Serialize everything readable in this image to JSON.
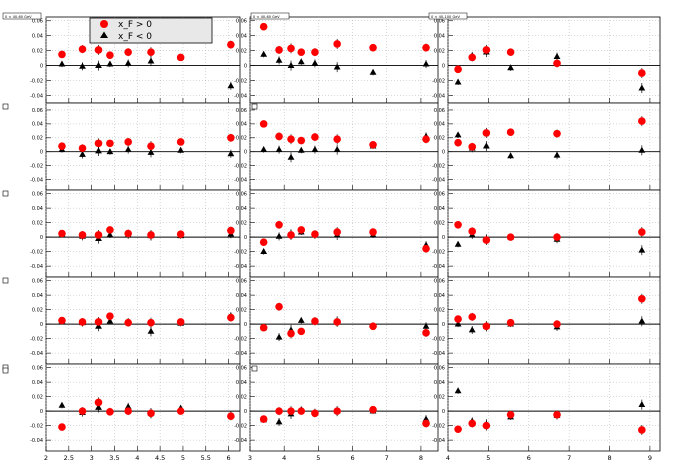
{
  "legend": {
    "entries": [
      {
        "label": "x_F > 0",
        "color": "#ff0000",
        "marker": "circle"
      },
      {
        "label": "x_F < 0",
        "color": "#000000",
        "marker": "triangle"
      }
    ]
  },
  "pad_titles": [
    "0 < 40-60 GeV",
    "0 < 40-60 GeV",
    "0 < 40-100 GeV"
  ],
  "chart_data": [
    {
      "type": "scatter",
      "grid": "3 columns x 5 rows of panels, each panel with dotted grid",
      "columns": [
        {
          "xlim": [
            2,
            6.25
          ],
          "xticks": [
            "2",
            "2.5",
            "3",
            "3.5",
            "4",
            "4.5",
            "5",
            "5.5",
            "6"
          ],
          "x_values": [
            2.35,
            2.8,
            3.15,
            3.4,
            3.8,
            4.3,
            4.95,
            6.05
          ],
          "rows": [
            {
              "ylim": [
                -0.05,
                0.065
              ],
              "yticks": [
                "-0.04",
                "-0.02",
                "0",
                "0.02",
                "0.04",
                "0.06"
              ],
              "xf_pos": [
                0.015,
                0.022,
                0.021,
                0.014,
                0.018,
                0.018,
                0.011,
                0.028
              ],
              "xf_neg": [
                0.002,
                -0.001,
                0.0,
                0.002,
                0.003,
                0.006,
                0.011,
                -0.027
              ]
            },
            {
              "ylim": [
                -0.055,
                0.07
              ],
              "yticks": [
                "-0.04",
                "-0.02",
                "0",
                "0.02",
                "0.04",
                "0.06"
              ],
              "xf_pos": [
                0.008,
                0.005,
                0.012,
                0.012,
                0.014,
                0.008,
                0.014,
                0.02
              ],
              "xf_neg": [
                0.003,
                -0.004,
                0.001,
                0.0,
                0.003,
                -0.001,
                0.002,
                -0.003
              ]
            },
            {
              "ylim": [
                -0.055,
                0.065
              ],
              "yticks": [
                "-0.04",
                "-0.02",
                "0",
                "0.02",
                "0.04",
                "0.06"
              ],
              "xf_pos": [
                0.005,
                0.003,
                0.003,
                0.01,
                0.005,
                0.003,
                0.004,
                0.009
              ],
              "xf_neg": [
                0.004,
                0.001,
                -0.002,
                0.003,
                0.003,
                0.002,
                0.002,
                0.004
              ]
            },
            {
              "ylim": [
                -0.055,
                0.065
              ],
              "yticks": [
                "-0.04",
                "-0.02",
                "0",
                "0.02",
                "0.04",
                "0.06"
              ],
              "xf_pos": [
                0.005,
                0.003,
                0.003,
                0.011,
                0.002,
                0.002,
                0.003,
                0.009
              ],
              "xf_neg": [
                0.004,
                0.002,
                -0.003,
                0.004,
                0.003,
                -0.01,
                0.001,
                0.011
              ]
            },
            {
              "ylim": [
                -0.055,
                0.065
              ],
              "yticks": [
                "-0.04",
                "-0.02",
                "0",
                "0.02",
                "0.04",
                "0.06"
              ],
              "xf_pos": [
                -0.022,
                0.0,
                0.012,
                -0.001,
                0.0,
                -0.003,
                0.0,
                -0.007
              ],
              "xf_neg": [
                0.008,
                -0.002,
                0.005,
                0.0,
                0.006,
                -0.003,
                0.004,
                -0.006
              ]
            }
          ]
        },
        {
          "xlim": [
            3,
            8.5
          ],
          "xticks": [
            "3",
            "4",
            "5",
            "6",
            "7",
            "8"
          ],
          "x_values": [
            3.4,
            3.85,
            4.2,
            4.5,
            4.9,
            5.55,
            6.6,
            8.15
          ],
          "rows": [
            {
              "ylim": [
                -0.05,
                0.065
              ],
              "yticks": [
                "-0.04",
                "-0.02",
                "0",
                "0.02",
                "0.04",
                "0.06"
              ],
              "xf_pos": [
                0.052,
                0.021,
                0.023,
                0.018,
                0.018,
                0.029,
                0.024,
                0.024
              ],
              "xf_neg": [
                0.015,
                0.007,
                0.0,
                0.005,
                0.003,
                -0.002,
                -0.009,
                0.002
              ]
            },
            {
              "ylim": [
                -0.055,
                0.07
              ],
              "yticks": [
                "-0.04",
                "-0.02",
                "0",
                "0.02",
                "0.04",
                "0.06"
              ],
              "xf_pos": [
                0.04,
                0.022,
                0.018,
                0.016,
                0.021,
                0.018,
                0.01,
                0.018
              ],
              "xf_neg": [
                0.003,
                0.003,
                -0.008,
                0.002,
                0.003,
                0.003,
                0.008,
                0.022
              ]
            },
            {
              "ylim": [
                -0.055,
                0.065
              ],
              "yticks": [
                "-0.04",
                "-0.02",
                "0",
                "0.02",
                "0.04",
                "0.06"
              ],
              "xf_pos": [
                -0.007,
                0.017,
                0.003,
                0.01,
                0.004,
                0.007,
                0.007,
                -0.016
              ],
              "xf_neg": [
                -0.02,
                0.001,
                0.004,
                0.007,
                0.003,
                0.003,
                0.003,
                -0.011
              ]
            },
            {
              "ylim": [
                -0.055,
                0.065
              ],
              "yticks": [
                "-0.04",
                "-0.02",
                "0",
                "0.02",
                "0.04",
                "0.06"
              ],
              "xf_pos": [
                -0.005,
                0.024,
                -0.013,
                -0.01,
                0.004,
                0.003,
                -0.003,
                -0.012
              ],
              "xf_neg": [
                -0.005,
                -0.018,
                -0.008,
                0.005,
                0.004,
                0.004,
                -0.002,
                -0.003
              ]
            },
            {
              "ylim": [
                -0.055,
                0.065
              ],
              "yticks": [
                "-0.04",
                "-0.02",
                "0",
                "0.02",
                "0.04",
                "0.06"
              ],
              "xf_pos": [
                -0.011,
                0.0,
                0.0,
                0.0,
                -0.003,
                0.0,
                0.002,
                -0.017
              ],
              "xf_neg": [
                -0.012,
                -0.015,
                -0.004,
                0.002,
                -0.002,
                0.0,
                0.0,
                -0.011
              ]
            }
          ]
        },
        {
          "xlim": [
            4,
            9.25
          ],
          "xticks": [
            "4",
            "5",
            "6",
            "7",
            "8",
            "9"
          ],
          "x_values": [
            4.25,
            4.6,
            4.95,
            5.55,
            6.7,
            8.8
          ],
          "rows": [
            {
              "ylim": [
                -0.05,
                0.065
              ],
              "yticks": [
                "-0.04",
                "-0.02",
                "0",
                "0.02",
                "0.04",
                "0.06"
              ],
              "xf_pos": [
                -0.005,
                0.011,
                0.021,
                0.018,
                0.003,
                -0.01
              ],
              "xf_neg": [
                -0.022,
                0.013,
                0.018,
                -0.003,
                0.012,
                -0.03
              ]
            },
            {
              "ylim": [
                -0.055,
                0.07
              ],
              "yticks": [
                "-0.04",
                "-0.02",
                "0",
                "0.02",
                "0.04",
                "0.06"
              ],
              "xf_pos": [
                0.013,
                0.007,
                0.027,
                0.028,
                0.026,
                0.044
              ],
              "xf_neg": [
                0.024,
                0.005,
                0.008,
                -0.006,
                -0.005,
                0.002
              ]
            },
            {
              "ylim": [
                -0.055,
                0.065
              ],
              "yticks": [
                "-0.04",
                "-0.02",
                "0",
                "0.02",
                "0.04",
                "0.06"
              ],
              "xf_pos": [
                0.017,
                0.008,
                -0.004,
                0.0,
                0.0,
                0.007
              ],
              "xf_neg": [
                -0.01,
                0.003,
                -0.003,
                0.0,
                -0.003,
                -0.018
              ]
            },
            {
              "ylim": [
                -0.055,
                0.065
              ],
              "yticks": [
                "-0.04",
                "-0.02",
                "0",
                "0.02",
                "0.04",
                "0.06"
              ],
              "xf_pos": [
                0.007,
                0.01,
                -0.003,
                0.002,
                0.0,
                0.035
              ],
              "xf_neg": [
                0.0,
                -0.008,
                -0.003,
                0.0,
                -0.004,
                0.004
              ]
            },
            {
              "ylim": [
                -0.055,
                0.065
              ],
              "yticks": [
                "-0.04",
                "-0.02",
                "0",
                "0.02",
                "0.04",
                "0.06"
              ],
              "xf_pos": [
                -0.025,
                -0.017,
                -0.02,
                -0.005,
                -0.005,
                -0.026
              ],
              "xf_neg": [
                0.028,
                -0.014,
                -0.018,
                -0.008,
                -0.006,
                0.009
              ]
            }
          ]
        }
      ]
    }
  ]
}
